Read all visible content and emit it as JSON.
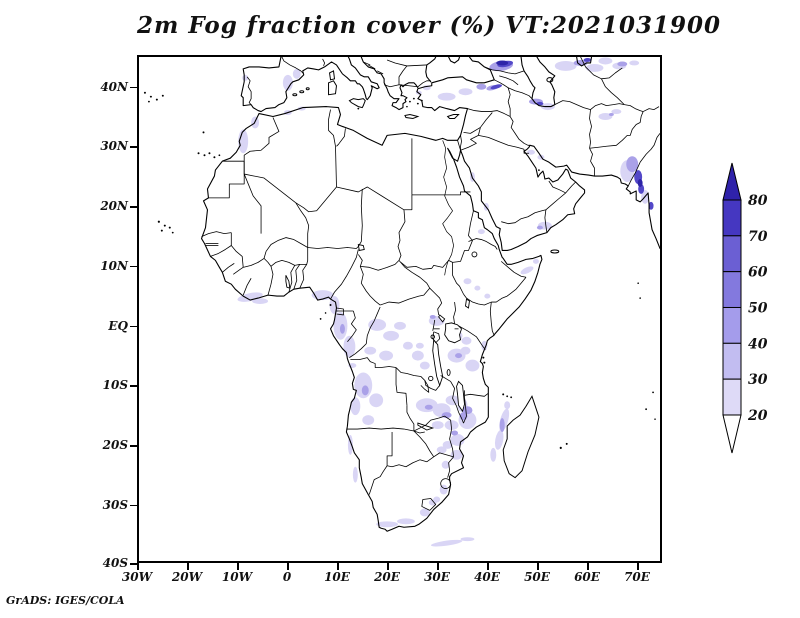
{
  "title": "2m Fog fraction cover (%) VT:2021031900",
  "credit": "GrADS: IGES/COLA",
  "axes": {
    "lat_ticks": [
      {
        "label": "40N",
        "value": 40
      },
      {
        "label": "30N",
        "value": 30
      },
      {
        "label": "20N",
        "value": 20
      },
      {
        "label": "10N",
        "value": 10
      },
      {
        "label": "EQ",
        "value": 0
      },
      {
        "label": "10S",
        "value": -10
      },
      {
        "label": "20S",
        "value": -20
      },
      {
        "label": "30S",
        "value": -30
      },
      {
        "label": "40S",
        "value": -40
      }
    ],
    "lon_ticks": [
      {
        "label": "30W",
        "value": -30
      },
      {
        "label": "20W",
        "value": -20
      },
      {
        "label": "10W",
        "value": -10
      },
      {
        "label": "0",
        "value": 0
      },
      {
        "label": "10E",
        "value": 10
      },
      {
        "label": "20E",
        "value": 20
      },
      {
        "label": "30E",
        "value": 30
      },
      {
        "label": "40E",
        "value": 40
      },
      {
        "label": "50E",
        "value": 50
      },
      {
        "label": "60E",
        "value": 60
      },
      {
        "label": "70E",
        "value": 70
      }
    ]
  },
  "chart_data": {
    "type": "heatmap",
    "title": "2m Fog fraction cover (%) VT:2021031900",
    "variable": "2m fog fraction cover",
    "units": "%",
    "valid_time": "2021031900",
    "extent": {
      "lon_min": -30,
      "lon_max": 75.2,
      "lat_min": -40.8,
      "lat_max": 45.3
    },
    "colorbar": {
      "levels": [
        80,
        70,
        60,
        50,
        40,
        30,
        20
      ],
      "segment_colors_top_to_bottom": [
        "#2f22aa",
        "#4537c1",
        "#6b5fd3",
        "#8379de",
        "#a49ceb",
        "#c2bdf1",
        "#dedaf7",
        "#ffffff"
      ],
      "orientation": "vertical",
      "position": "right"
    },
    "fog_colors": {
      "light": "#d9d5f5",
      "medium": "#aaa1e8",
      "dark": "#5348c8",
      "darkest": "#2e24a8"
    },
    "notable_fog_regions": [
      "Gulf of Guinea coast",
      "Gabon-Congo coast",
      "Congo basin",
      "Angola",
      "Zambia-Malawi-Mozambique",
      "Tanzania",
      "eastern Madagascar",
      "South Africa south coast",
      "Ethiopian highlands",
      "Yemen-Oman coast",
      "Anatolia",
      "Caucasus-Black Sea",
      "south Caspian shore",
      "Kazakhstan (top right)",
      "Afghanistan",
      "Pakistan-NW India"
    ]
  }
}
